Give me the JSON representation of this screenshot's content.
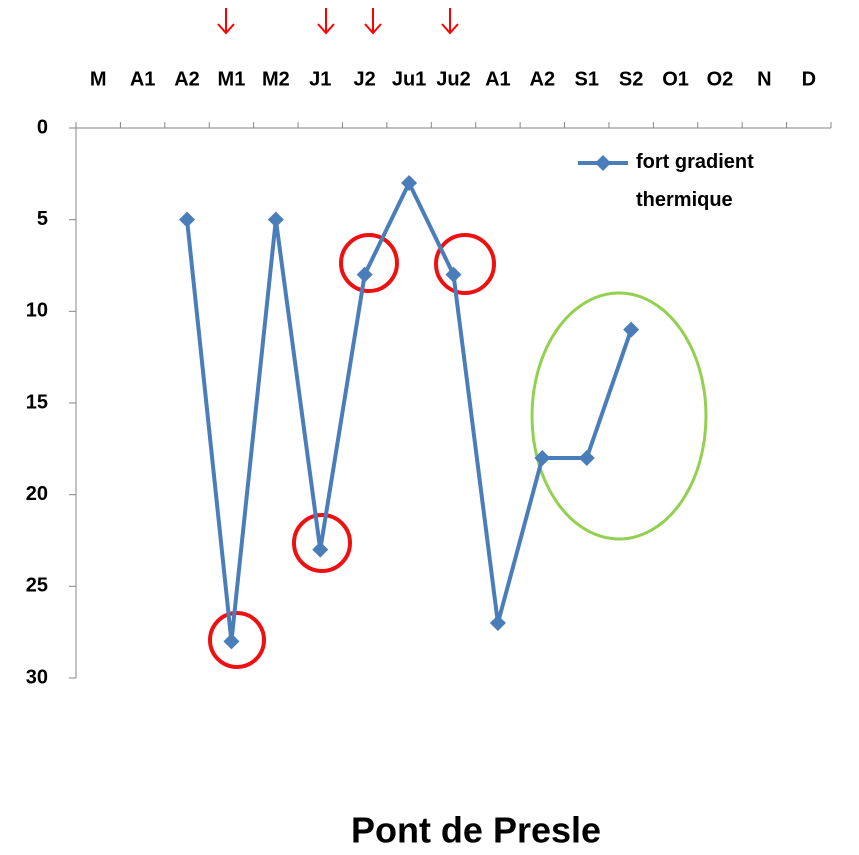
{
  "chart_data": {
    "type": "line",
    "title": "Pont de Presle",
    "categories": [
      "M",
      "A1",
      "A2",
      "M1",
      "M2",
      "J1",
      "J2",
      "Ju1",
      "Ju2",
      "A1",
      "A2",
      "S1",
      "S2",
      "O1",
      "O2",
      "N",
      "D"
    ],
    "series": [
      {
        "name": "fort gradient thermique",
        "color": "#4a7ebb",
        "values": [
          null,
          null,
          5,
          28,
          5,
          23,
          8,
          3,
          8,
          27,
          18,
          18,
          11,
          null,
          null,
          null,
          null
        ]
      }
    ],
    "ylim": [
      0,
      30
    ],
    "yticks": [
      0,
      5,
      10,
      15,
      20,
      25,
      30
    ],
    "y_inverted": true,
    "grid": false,
    "legend": "top-right"
  }
}
